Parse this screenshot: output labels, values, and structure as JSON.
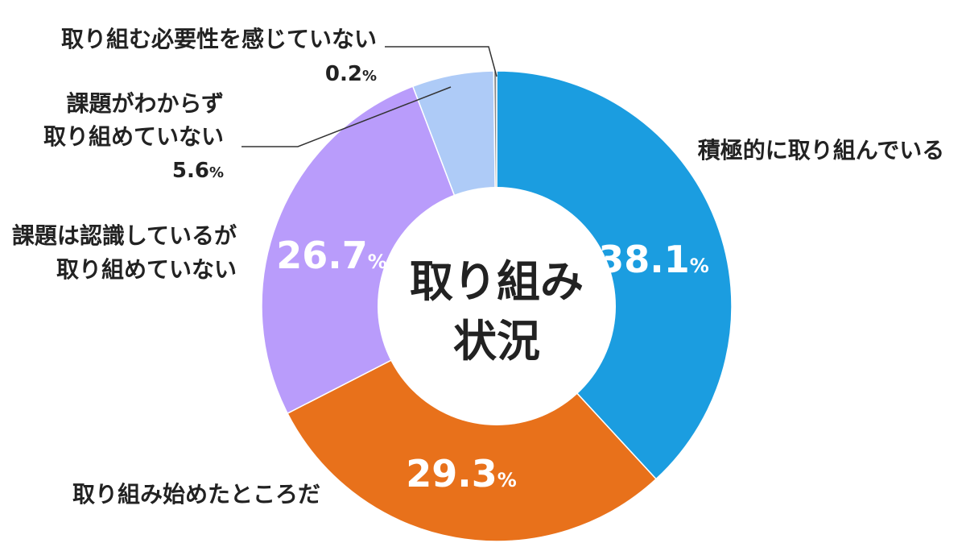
{
  "chart_data": {
    "type": "pie",
    "title": "取り組み状況",
    "center_lines": [
      "取り組み",
      "状況"
    ],
    "slices": [
      {
        "label": "積極的に取り組んでいる",
        "label_lines": [
          "積極的に取り組んでいる"
        ],
        "value": 38.1,
        "color": "#1b9de0"
      },
      {
        "label": "取り組み始めたところだ",
        "label_lines": [
          "取り組み始めたところだ"
        ],
        "value": 29.3,
        "color": "#e8711b"
      },
      {
        "label": "課題は認識しているが取り組めていない",
        "label_lines": [
          "課題は認識しているが",
          "取り組めていない"
        ],
        "value": 26.7,
        "color": "#b99cfb"
      },
      {
        "label": "課題がわからず取り組めていない",
        "label_lines": [
          "課題がわからず",
          "取り組めていない"
        ],
        "value": 5.6,
        "color": "#aecbf7"
      },
      {
        "label": "取り組む必要性を感じていない",
        "label_lines": [
          "取り組む必要性を感じていない"
        ],
        "value": 0.2,
        "color": "#8a8a8a"
      }
    ],
    "unit": "%"
  }
}
